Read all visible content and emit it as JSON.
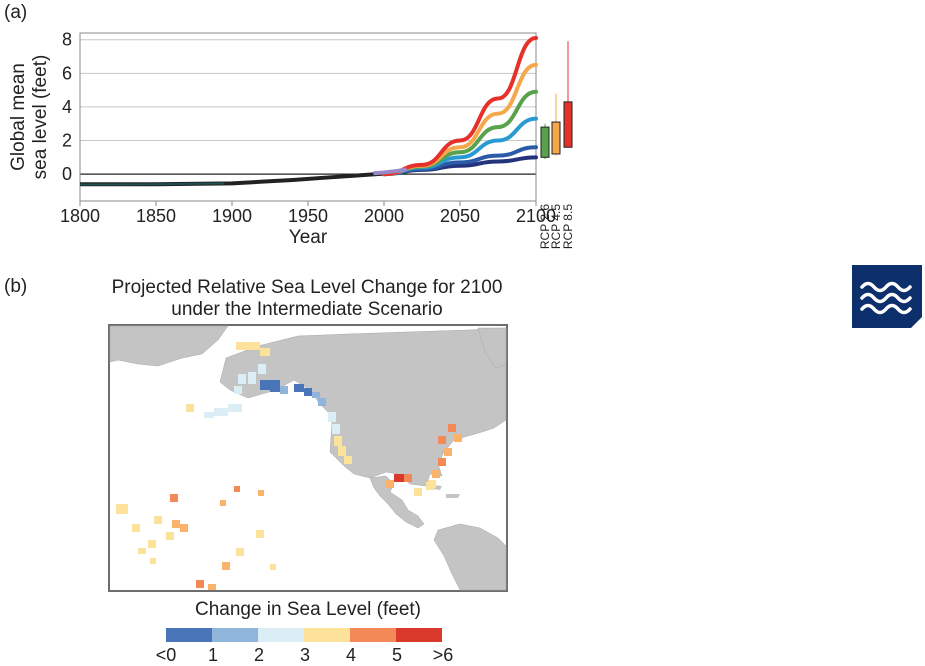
{
  "panel_a": {
    "label": "(a)"
  },
  "panel_b": {
    "label": "(b)"
  },
  "map": {
    "title_line1": "Projected Relative Sea Level Change for 2100",
    "title_line2": "under the Intermediate Scenario"
  },
  "legend": {
    "title": "Change in Sea Level (feet)",
    "ticks": [
      "<0",
      "1",
      "2",
      "3",
      "4",
      "5",
      ">6"
    ],
    "colors": [
      "#4a74b8",
      "#8fb6da",
      "#dbeef6",
      "#fde39a",
      "#fbb26a",
      "#f38956",
      "#d93a2c"
    ]
  },
  "badge": {
    "icon": "waves-icon",
    "color": "#0d2f6b"
  },
  "chart_data": {
    "type": "line",
    "xlabel": "Year",
    "ylabel_line1": "Global mean",
    "ylabel_line2": "sea level (feet)",
    "xlim": [
      1800,
      2100
    ],
    "ylim": [
      -1.6,
      8.4
    ],
    "xticks": [
      "1800",
      "1850",
      "1900",
      "1950",
      "2000",
      "2050",
      "2100"
    ],
    "yticks": [
      "0",
      "2",
      "4",
      "6",
      "8"
    ],
    "grid": true,
    "historical": {
      "color": "#222222",
      "x": [
        1800,
        1850,
        1900,
        1920,
        1940,
        1960,
        1980,
        2000,
        2015
      ],
      "y": [
        -0.6,
        -0.6,
        -0.55,
        -0.45,
        -0.35,
        -0.22,
        -0.1,
        0.03,
        0.2
      ]
    },
    "early_record": {
      "color": "#1f4f4f",
      "x": [
        1800,
        1850,
        1895
      ],
      "y": [
        -0.62,
        -0.6,
        -0.55
      ]
    },
    "satellite": {
      "color": "#9a88c8",
      "x": [
        1993,
        2000,
        2008,
        2015
      ],
      "y": [
        0.05,
        0.1,
        0.18,
        0.28
      ]
    },
    "series": [
      {
        "color": "#24347c",
        "x": [
          2000,
          2025,
          2050,
          2075,
          2100
        ],
        "y": [
          0,
          0.25,
          0.5,
          0.75,
          1.0
        ]
      },
      {
        "color": "#2a5aa8",
        "x": [
          2000,
          2025,
          2050,
          2075,
          2100
        ],
        "y": [
          0,
          0.3,
          0.7,
          1.1,
          1.6
        ]
      },
      {
        "color": "#2a9bd0",
        "x": [
          2000,
          2025,
          2050,
          2075,
          2100
        ],
        "y": [
          0,
          0.4,
          1.0,
          2.0,
          3.3
        ]
      },
      {
        "color": "#57a24a",
        "x": [
          2000,
          2025,
          2050,
          2075,
          2100
        ],
        "y": [
          0,
          0.45,
          1.3,
          2.8,
          4.9
        ]
      },
      {
        "color": "#f5a84a",
        "x": [
          2000,
          2025,
          2050,
          2075,
          2100
        ],
        "y": [
          0,
          0.5,
          1.6,
          3.6,
          6.5
        ]
      },
      {
        "color": "#e6312b",
        "x": [
          2000,
          2025,
          2050,
          2075,
          2100
        ],
        "y": [
          0,
          0.55,
          2.0,
          4.5,
          8.1
        ]
      }
    ],
    "scenario_boxes": [
      {
        "name": "RCP 2.6",
        "color": "#57a24a",
        "low": 0.9,
        "q1": 1.0,
        "q3": 2.8,
        "high": 3.0
      },
      {
        "name": "RCP 4.5",
        "color": "#f5a84a",
        "low": 1.1,
        "q1": 1.2,
        "q3": 3.1,
        "high": 4.8
      },
      {
        "name": "RCP 8.5",
        "color": "#e6312b",
        "low": 1.6,
        "q1": 1.6,
        "q3": 4.3,
        "high": 7.9
      }
    ]
  }
}
